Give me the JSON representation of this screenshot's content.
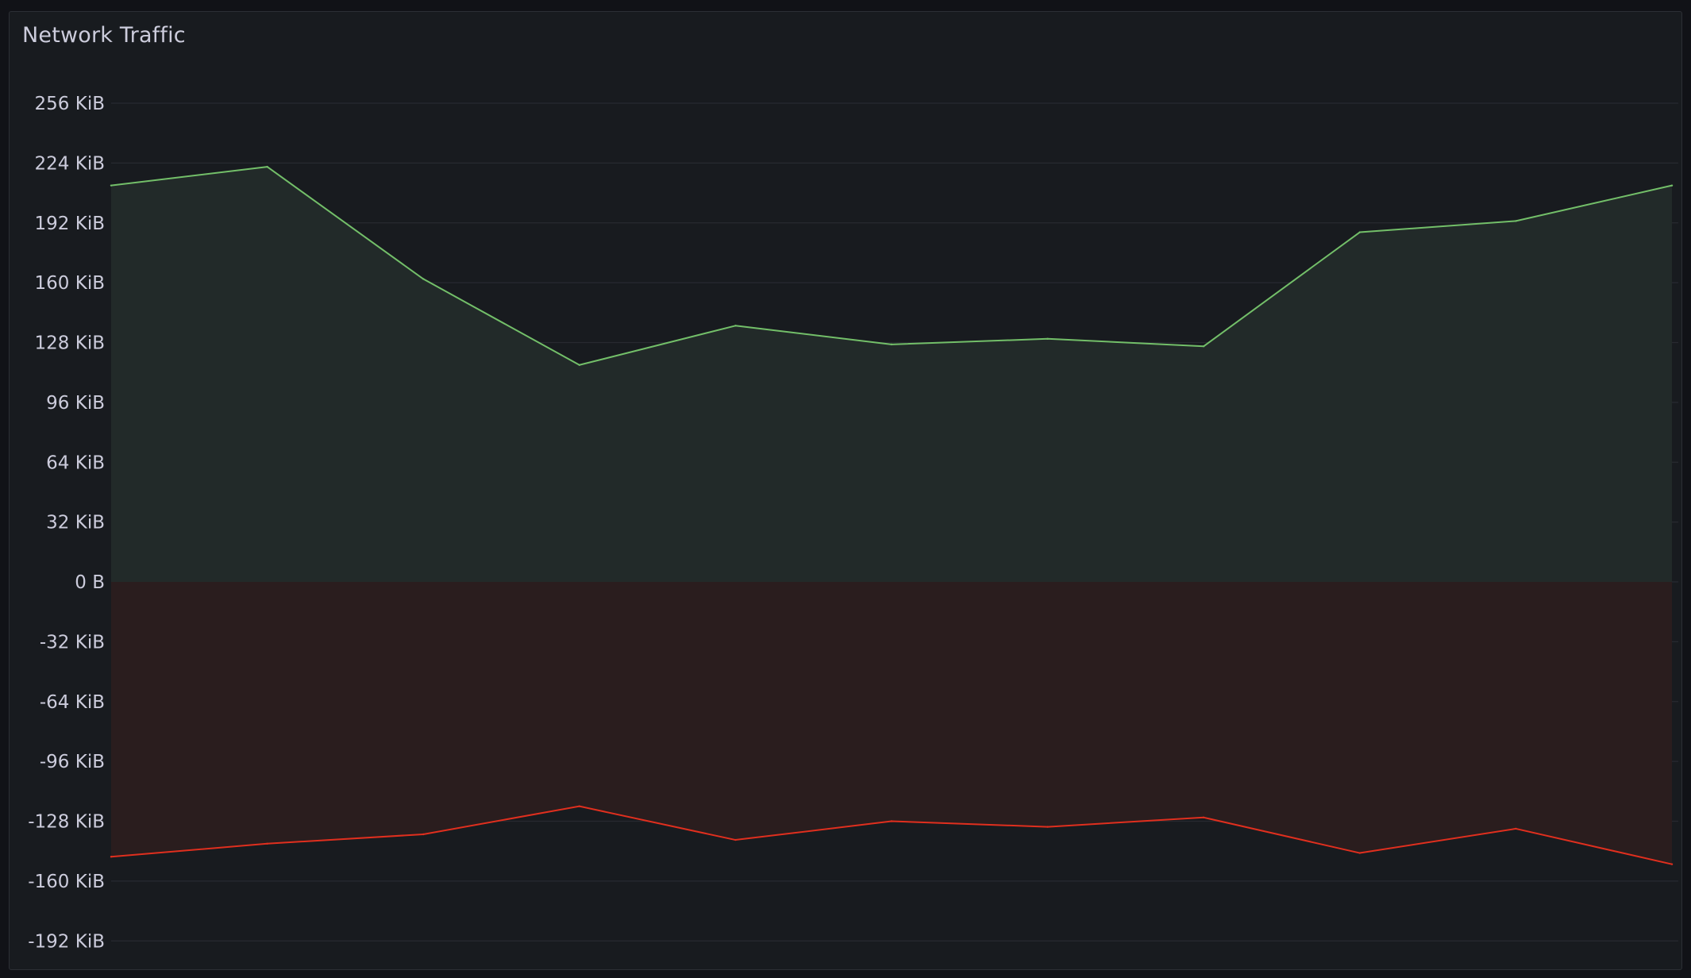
{
  "panel": {
    "title": "Network Traffic"
  },
  "chart_data": {
    "type": "area",
    "title": "Network Traffic",
    "xlabel": "",
    "ylabel": "",
    "ylim": [
      -208,
      272
    ],
    "y_ticks": [
      256,
      224,
      192,
      160,
      128,
      96,
      64,
      32,
      0,
      -32,
      -64,
      -96,
      -128,
      -160,
      -192
    ],
    "y_tick_labels": [
      "256 KiB",
      "224 KiB",
      "192 KiB",
      "160 KiB",
      "128 KiB",
      "96 KiB",
      "64 KiB",
      "32 KiB",
      "0 B",
      "-32 KiB",
      "-64 KiB",
      "-96 KiB",
      "-128 KiB",
      "-160 KiB",
      "-192 KiB"
    ],
    "x": [
      0,
      1,
      2,
      3,
      4,
      5,
      6,
      7,
      8,
      9,
      10
    ],
    "grid": true,
    "series": [
      {
        "values": [
          212,
          222,
          162,
          116,
          137,
          127,
          130,
          126,
          187,
          193,
          212
        ],
        "color": "#73bf69",
        "fill": "#222a29"
      },
      {
        "values": [
          -147,
          -140,
          -135,
          -120,
          -138,
          -128,
          -131,
          -126,
          -145,
          -132,
          -151
        ],
        "color": "#e02f1e",
        "fill": "#2a1d1e"
      }
    ]
  }
}
